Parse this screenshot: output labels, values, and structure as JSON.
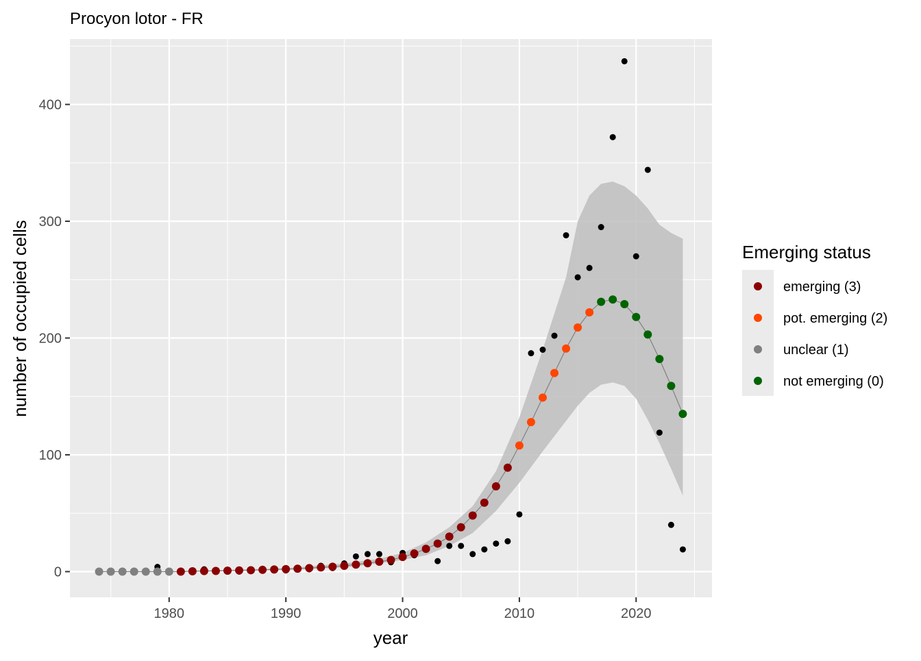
{
  "chart_data": {
    "type": "scatter",
    "title": "Procyon lotor - FR",
    "xlabel": "year",
    "ylabel": "number of occupied cells",
    "xlim": [
      1971.5,
      2026.5
    ],
    "ylim": [
      -22,
      456
    ],
    "x_ticks": [
      1980,
      1990,
      2000,
      2010,
      2020
    ],
    "y_ticks": [
      0,
      100,
      200,
      300,
      400
    ],
    "grid": true,
    "legend": {
      "title": "Emerging status",
      "placement": "right",
      "items": [
        {
          "label": "emerging (3)",
          "color": "#8B0000"
        },
        {
          "label": "pot. emerging (2)",
          "color": "#FF4500"
        },
        {
          "label": "unclear (1)",
          "color": "#808080"
        },
        {
          "label": "not emerging (0)",
          "color": "#006400"
        }
      ]
    },
    "colors": {
      "emerging": "#8B0000",
      "pot_emerging": "#FF4500",
      "unclear": "#808080",
      "not_emerging": "#006400",
      "observed": "#000000",
      "ribbon": "#BEBEBE",
      "line": "#808080",
      "panel": "#EBEBEB"
    },
    "observed": {
      "x": [
        1974,
        1975,
        1976,
        1977,
        1978,
        1979,
        1980,
        1981,
        1982,
        1983,
        1984,
        1985,
        1986,
        1987,
        1988,
        1989,
        1990,
        1991,
        1992,
        1993,
        1994,
        1995,
        1996,
        1997,
        1998,
        1999,
        2000,
        2001,
        2002,
        2003,
        2004,
        2005,
        2006,
        2007,
        2008,
        2009,
        2010,
        2011,
        2012,
        2013,
        2014,
        2015,
        2016,
        2017,
        2018,
        2019,
        2020,
        2021,
        2022,
        2023,
        2024
      ],
      "y": [
        0,
        0,
        0,
        0,
        0,
        4,
        0,
        0,
        0,
        2,
        0,
        0,
        0,
        1,
        1,
        1,
        1,
        2,
        2,
        5,
        3,
        7,
        13,
        15,
        15,
        8,
        16,
        14,
        19,
        9,
        22,
        22,
        15,
        19,
        24,
        26,
        49,
        187,
        190,
        202,
        288,
        252,
        260,
        295,
        372,
        437,
        270,
        344,
        119,
        40,
        19
      ]
    },
    "fitted": {
      "x": [
        1974,
        1975,
        1976,
        1977,
        1978,
        1979,
        1980,
        1981,
        1982,
        1983,
        1984,
        1985,
        1986,
        1987,
        1988,
        1989,
        1990,
        1991,
        1992,
        1993,
        1994,
        1995,
        1996,
        1997,
        1998,
        1999,
        2000,
        2001,
        2002,
        2003,
        2004,
        2005,
        2006,
        2007,
        2008,
        2009,
        2010,
        2011,
        2012,
        2013,
        2014,
        2015,
        2016,
        2017,
        2018,
        2019,
        2020,
        2021,
        2022,
        2023,
        2024
      ],
      "y": [
        0,
        0,
        0,
        0,
        0,
        0,
        0,
        0,
        0.3,
        0.5,
        0.6,
        0.8,
        1,
        1.2,
        1.5,
        1.8,
        2.1,
        2.5,
        3,
        3.6,
        4.2,
        5,
        6,
        7.2,
        8.5,
        10,
        12.5,
        15.5,
        19.5,
        24,
        30,
        38,
        48,
        59,
        73,
        89,
        108,
        128,
        149,
        170,
        191,
        209,
        222,
        231,
        233,
        229,
        218,
        203,
        182,
        159,
        135
      ],
      "status": [
        "unclear",
        "unclear",
        "unclear",
        "unclear",
        "unclear",
        "unclear",
        "unclear",
        "emerging",
        "emerging",
        "emerging",
        "emerging",
        "emerging",
        "emerging",
        "emerging",
        "emerging",
        "emerging",
        "emerging",
        "emerging",
        "emerging",
        "emerging",
        "emerging",
        "emerging",
        "emerging",
        "emerging",
        "emerging",
        "emerging",
        "emerging",
        "emerging",
        "emerging",
        "emerging",
        "emerging",
        "emerging",
        "emerging",
        "emerging",
        "emerging",
        "emerging",
        "pot_emerging",
        "pot_emerging",
        "pot_emerging",
        "pot_emerging",
        "pot_emerging",
        "pot_emerging",
        "pot_emerging",
        "not_emerging",
        "not_emerging",
        "not_emerging",
        "not_emerging",
        "not_emerging",
        "not_emerging",
        "not_emerging",
        "not_emerging"
      ]
    },
    "ribbon": {
      "x": [
        1981,
        1985,
        1990,
        1995,
        1998,
        2000,
        2002,
        2004,
        2006,
        2008,
        2010,
        2012,
        2014,
        2015,
        2016,
        2017,
        2018,
        2019,
        2020,
        2021,
        2022,
        2023,
        2024
      ],
      "lower": [
        0,
        0.5,
        1.5,
        3.5,
        7,
        10,
        14,
        22,
        33,
        52,
        76,
        103,
        129,
        142,
        153,
        160,
        162,
        159,
        148,
        130,
        110,
        88,
        65
      ],
      "upper": [
        0.5,
        1.5,
        3,
        7,
        11,
        16,
        25,
        38,
        56,
        86,
        132,
        190,
        252,
        300,
        322,
        332,
        334,
        330,
        322,
        311,
        297,
        290,
        285
      ]
    }
  }
}
